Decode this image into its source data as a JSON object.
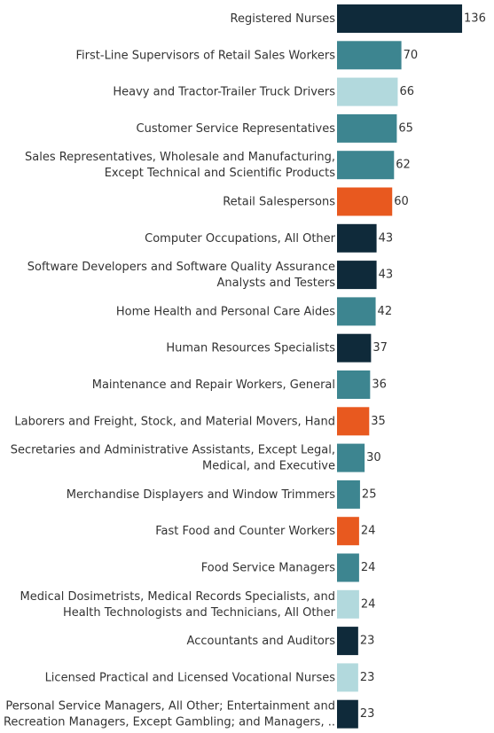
{
  "chart_data": {
    "type": "bar",
    "orientation": "horizontal",
    "categories": [
      "Registered Nurses",
      "First-Line Supervisors of Retail Sales Workers",
      "Heavy and Tractor-Trailer Truck Drivers",
      "Customer Service Representatives",
      "Sales Representatives, Wholesale and Manufacturing,\nExcept Technical and Scientific Products",
      "Retail Salespersons",
      "Computer Occupations, All Other",
      "Software Developers and Software Quality Assurance\nAnalysts and Testers",
      "Home Health and Personal Care Aides",
      "Human Resources Specialists",
      "Maintenance and Repair Workers, General",
      "Laborers and Freight, Stock, and Material Movers, Hand",
      "Secretaries and Administrative Assistants, Except Legal,\nMedical, and Executive",
      "Merchandise Displayers and Window Trimmers",
      "Fast Food and Counter Workers",
      "Food Service Managers",
      "Medical Dosimetrists, Medical Records Specialists, and\nHealth Technologists and Technicians, All Other",
      "Accountants and Auditors",
      "Licensed Practical and Licensed Vocational Nurses",
      "Personal Service Managers, All Other; Entertainment and\nRecreation Managers, Except Gambling; and Managers, .."
    ],
    "values": [
      136,
      70,
      66,
      65,
      62,
      60,
      43,
      43,
      42,
      37,
      36,
      35,
      30,
      25,
      24,
      24,
      24,
      23,
      23,
      23
    ],
    "colors": [
      "#0f2a3a",
      "#3d8590",
      "#b2d9dd",
      "#3d8590",
      "#3d8590",
      "#e8591f",
      "#0f2a3a",
      "#0f2a3a",
      "#3d8590",
      "#0f2a3a",
      "#3d8590",
      "#e8591f",
      "#3d8590",
      "#3d8590",
      "#e8591f",
      "#3d8590",
      "#b2d9dd",
      "#0f2a3a",
      "#b2d9dd",
      "#0f2a3a"
    ]
  }
}
